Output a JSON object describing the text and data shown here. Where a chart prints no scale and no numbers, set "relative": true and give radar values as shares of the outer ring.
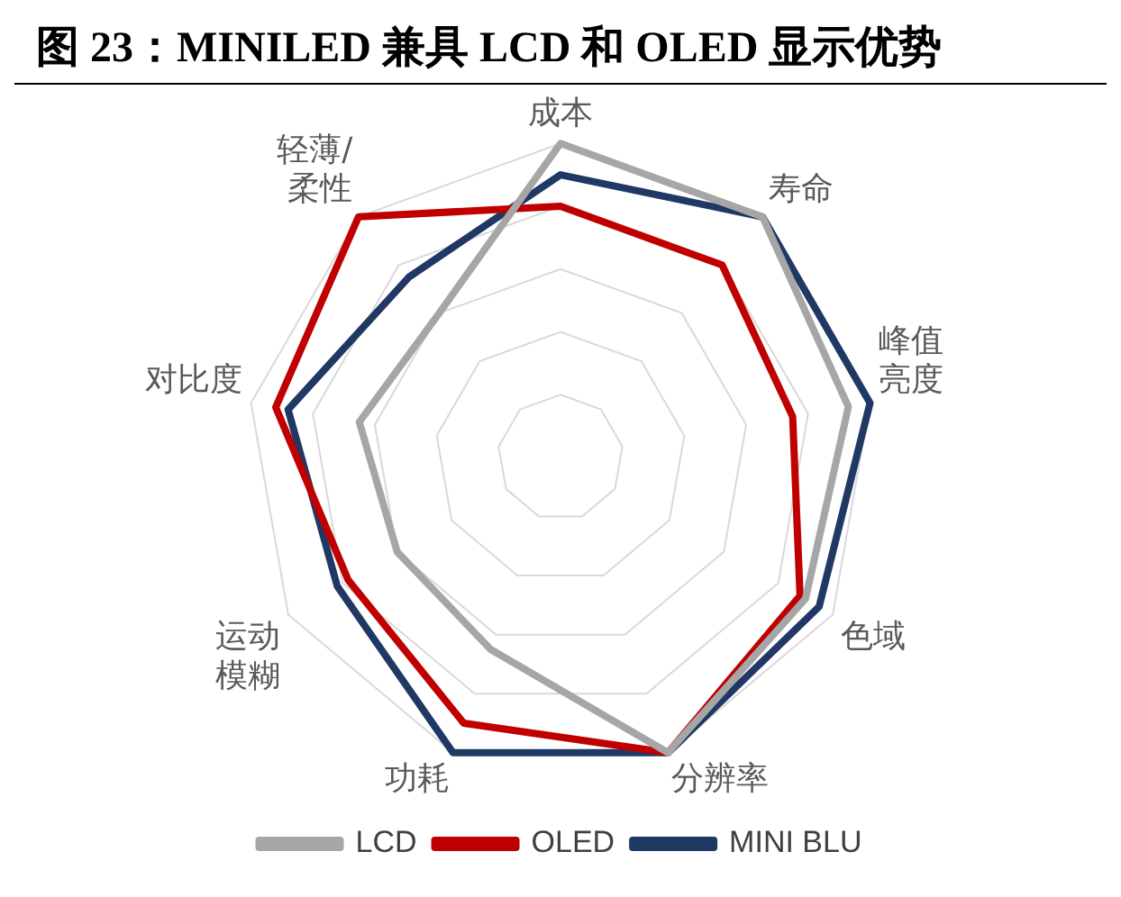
{
  "chart_data": {
    "type": "radar",
    "title": "图 23：MINILED 兼具 LCD 和 OLED 显示优势",
    "relative": true,
    "grid": true,
    "legend": "bottom",
    "categories": [
      "成本",
      "寿命",
      "峰值亮度",
      "色域",
      "分辨率",
      "功耗",
      "运动模糊",
      "对比度",
      "轻薄/柔性"
    ],
    "series": [
      {
        "name": "LCD",
        "color": "#a6a6a6",
        "values": [
          1.0,
          1.0,
          0.93,
          0.9,
          1.0,
          0.65,
          0.6,
          0.65,
          0.6
        ]
      },
      {
        "name": "OLED",
        "color": "#c00000",
        "values": [
          0.8,
          0.8,
          0.75,
          0.88,
          1.0,
          0.9,
          0.78,
          0.92,
          1.0
        ]
      },
      {
        "name": "MINI BLU",
        "color": "#1f3864",
        "values": [
          0.9,
          1.0,
          1.0,
          0.95,
          1.0,
          1.0,
          0.82,
          0.88,
          0.75
        ]
      }
    ]
  }
}
